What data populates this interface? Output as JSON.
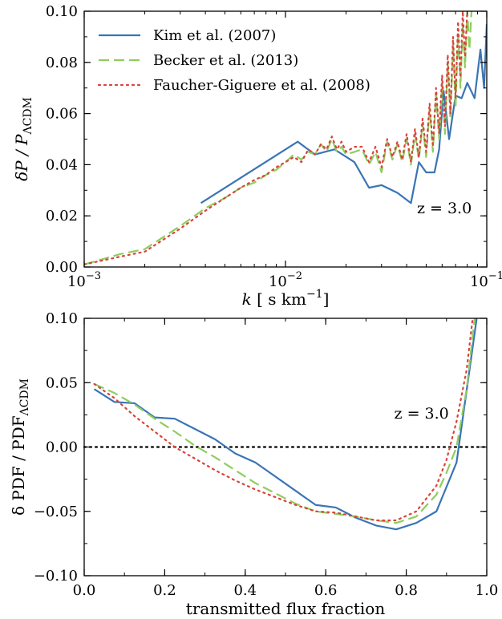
{
  "chart_data": [
    {
      "type": "line",
      "title": "",
      "xscale": "log",
      "xlim": [
        0.001,
        0.1
      ],
      "ylim": [
        0.0,
        0.1
      ],
      "xticks": [
        0.001,
        0.01,
        0.1
      ],
      "xtick_labels": [
        {
          "base": "10",
          "exp": "−3"
        },
        {
          "base": "10",
          "exp": "−2"
        },
        {
          "base": "10",
          "exp": "−1"
        }
      ],
      "yticks": [
        0.0,
        0.02,
        0.04,
        0.06,
        0.08,
        0.1
      ],
      "ytick_labels": [
        "0.00",
        "0.02",
        "0.04",
        "0.06",
        "0.08",
        "0.10"
      ],
      "xlabel": {
        "pre": "k",
        "mid": " [ s km",
        "exp": "−1",
        "post": "]"
      },
      "ylabel": {
        "main": "δP / P",
        "sub": "ΛCDM"
      },
      "legend_placement": "top-left",
      "annotation": {
        "text": "z = 3.0",
        "x": 0.045,
        "y": 0.021
      },
      "series": [
        {
          "name": "Kim et al. (2007)",
          "color": "#3a74b4",
          "style": "solid",
          "points": [
            [
              0.0038,
              0.025
            ],
            [
              0.0115,
              0.049
            ],
            [
              0.014,
              0.044
            ],
            [
              0.0175,
              0.046
            ],
            [
              0.022,
              0.041
            ],
            [
              0.026,
              0.031
            ],
            [
              0.03,
              0.032
            ],
            [
              0.036,
              0.029
            ],
            [
              0.042,
              0.025
            ],
            [
              0.046,
              0.041
            ],
            [
              0.05,
              0.037
            ],
            [
              0.055,
              0.037
            ],
            [
              0.058,
              0.046
            ],
            [
              0.061,
              0.069
            ],
            [
              0.065,
              0.05
            ],
            [
              0.07,
              0.067
            ],
            [
              0.075,
              0.066
            ],
            [
              0.08,
              0.072
            ],
            [
              0.087,
              0.066
            ],
            [
              0.093,
              0.085
            ],
            [
              0.097,
              0.07
            ],
            [
              0.1,
              0.095
            ]
          ]
        },
        {
          "name": "Becker et al. (2013)",
          "color": "#8fcd5e",
          "style": "dashed",
          "points": [
            [
              0.001,
              0.001
            ],
            [
              0.0015,
              0.005
            ],
            [
              0.002,
              0.007
            ],
            [
              0.003,
              0.016
            ],
            [
              0.004,
              0.023
            ],
            [
              0.005,
              0.027
            ],
            [
              0.006,
              0.031
            ],
            [
              0.007,
              0.033
            ],
            [
              0.008,
              0.036
            ],
            [
              0.009,
              0.038
            ],
            [
              0.01,
              0.041
            ],
            [
              0.011,
              0.044
            ],
            [
              0.012,
              0.042
            ],
            [
              0.013,
              0.045
            ],
            [
              0.014,
              0.044
            ],
            [
              0.015,
              0.048
            ],
            [
              0.016,
              0.045
            ],
            [
              0.017,
              0.05
            ],
            [
              0.018,
              0.045
            ],
            [
              0.019,
              0.047
            ],
            [
              0.02,
              0.044
            ],
            [
              0.022,
              0.045
            ],
            [
              0.024,
              0.046
            ],
            [
              0.026,
              0.04
            ],
            [
              0.028,
              0.045
            ],
            [
              0.03,
              0.037
            ],
            [
              0.032,
              0.049
            ],
            [
              0.034,
              0.042
            ],
            [
              0.036,
              0.048
            ],
            [
              0.038,
              0.041
            ],
            [
              0.04,
              0.05
            ],
            [
              0.042,
              0.04
            ],
            [
              0.044,
              0.052
            ],
            [
              0.046,
              0.042
            ],
            [
              0.048,
              0.056
            ],
            [
              0.05,
              0.043
            ],
            [
              0.052,
              0.062
            ],
            [
              0.054,
              0.045
            ],
            [
              0.056,
              0.068
            ],
            [
              0.058,
              0.05
            ],
            [
              0.06,
              0.072
            ],
            [
              0.062,
              0.052
            ],
            [
              0.064,
              0.08
            ],
            [
              0.066,
              0.058
            ],
            [
              0.068,
              0.087
            ],
            [
              0.07,
              0.062
            ],
            [
              0.072,
              0.092
            ],
            [
              0.074,
              0.07
            ],
            [
              0.076,
              0.095
            ],
            [
              0.078,
              0.078
            ],
            [
              0.08,
              0.1
            ],
            [
              0.082,
              0.085
            ],
            [
              0.084,
              0.1
            ]
          ]
        },
        {
          "name": "Faucher-Giguere et al. (2008)",
          "color": "#d8443c",
          "style": "dotted",
          "points": [
            [
              0.001,
              0.001
            ],
            [
              0.0015,
              0.004
            ],
            [
              0.002,
              0.006
            ],
            [
              0.003,
              0.015
            ],
            [
              0.004,
              0.022
            ],
            [
              0.005,
              0.027
            ],
            [
              0.006,
              0.031
            ],
            [
              0.007,
              0.034
            ],
            [
              0.008,
              0.036
            ],
            [
              0.009,
              0.039
            ],
            [
              0.01,
              0.041
            ],
            [
              0.011,
              0.043
            ],
            [
              0.012,
              0.041
            ],
            [
              0.013,
              0.046
            ],
            [
              0.014,
              0.044
            ],
            [
              0.015,
              0.048
            ],
            [
              0.016,
              0.046
            ],
            [
              0.017,
              0.051
            ],
            [
              0.018,
              0.046
            ],
            [
              0.019,
              0.049
            ],
            [
              0.02,
              0.045
            ],
            [
              0.022,
              0.047
            ],
            [
              0.024,
              0.047
            ],
            [
              0.026,
              0.041
            ],
            [
              0.028,
              0.047
            ],
            [
              0.03,
              0.039
            ],
            [
              0.032,
              0.05
            ],
            [
              0.034,
              0.043
            ],
            [
              0.036,
              0.049
            ],
            [
              0.038,
              0.042
            ],
            [
              0.04,
              0.052
            ],
            [
              0.042,
              0.041
            ],
            [
              0.044,
              0.054
            ],
            [
              0.046,
              0.043
            ],
            [
              0.048,
              0.058
            ],
            [
              0.05,
              0.045
            ],
            [
              0.052,
              0.064
            ],
            [
              0.054,
              0.047
            ],
            [
              0.056,
              0.07
            ],
            [
              0.058,
              0.052
            ],
            [
              0.06,
              0.075
            ],
            [
              0.062,
              0.055
            ],
            [
              0.064,
              0.083
            ],
            [
              0.066,
              0.06
            ],
            [
              0.068,
              0.09
            ],
            [
              0.07,
              0.066
            ],
            [
              0.072,
              0.096
            ],
            [
              0.074,
              0.074
            ],
            [
              0.076,
              0.1
            ],
            [
              0.078,
              0.082
            ],
            [
              0.08,
              0.1
            ]
          ]
        }
      ]
    },
    {
      "type": "line",
      "title": "",
      "xscale": "linear",
      "xlim": [
        0.0,
        1.0
      ],
      "ylim": [
        -0.1,
        0.1
      ],
      "xticks": [
        0.0,
        0.2,
        0.4,
        0.6,
        0.8,
        1.0
      ],
      "xtick_labels": [
        "0.0",
        "0.2",
        "0.4",
        "0.6",
        "0.8",
        "1.0"
      ],
      "yticks": [
        -0.1,
        -0.05,
        0.0,
        0.05,
        0.1
      ],
      "ytick_labels": [
        "−0.10",
        "−0.05",
        "0.00",
        "0.05",
        "0.10"
      ],
      "xlabel": "transmitted flux fraction",
      "ylabel": {
        "main": "δ PDF / PDF",
        "sub": "ΛCDM"
      },
      "annotation": {
        "text": "z = 3.0",
        "x": 0.77,
        "y": 0.022
      },
      "reference_line": {
        "y": 0.0,
        "color": "#000000",
        "style": "dotted"
      },
      "series": [
        {
          "name": "Kim et al. (2007)",
          "color": "#3a74b4",
          "style": "solid",
          "points": [
            [
              0.025,
              0.045
            ],
            [
              0.075,
              0.035
            ],
            [
              0.125,
              0.034
            ],
            [
              0.175,
              0.023
            ],
            [
              0.225,
              0.022
            ],
            [
              0.275,
              0.014
            ],
            [
              0.325,
              0.006
            ],
            [
              0.375,
              -0.005
            ],
            [
              0.425,
              -0.012
            ],
            [
              0.475,
              -0.023
            ],
            [
              0.525,
              -0.034
            ],
            [
              0.575,
              -0.045
            ],
            [
              0.625,
              -0.047
            ],
            [
              0.675,
              -0.055
            ],
            [
              0.725,
              -0.061
            ],
            [
              0.775,
              -0.064
            ],
            [
              0.825,
              -0.059
            ],
            [
              0.875,
              -0.05
            ],
            [
              0.925,
              -0.012
            ],
            [
              0.975,
              0.1
            ]
          ]
        },
        {
          "name": "Becker et al. (2013)",
          "color": "#8fcd5e",
          "style": "dashed",
          "points": [
            [
              0.025,
              0.049
            ],
            [
              0.075,
              0.042
            ],
            [
              0.125,
              0.033
            ],
            [
              0.175,
              0.022
            ],
            [
              0.225,
              0.012
            ],
            [
              0.275,
              0.001
            ],
            [
              0.325,
              -0.008
            ],
            [
              0.375,
              -0.018
            ],
            [
              0.425,
              -0.028
            ],
            [
              0.475,
              -0.036
            ],
            [
              0.525,
              -0.044
            ],
            [
              0.575,
              -0.05
            ],
            [
              0.625,
              -0.052
            ],
            [
              0.675,
              -0.054
            ],
            [
              0.725,
              -0.057
            ],
            [
              0.775,
              -0.059
            ],
            [
              0.825,
              -0.054
            ],
            [
              0.875,
              -0.037
            ],
            [
              0.9,
              -0.02
            ],
            [
              0.925,
              0.0
            ],
            [
              0.95,
              0.045
            ],
            [
              0.97,
              0.1
            ]
          ]
        },
        {
          "name": "Faucher-Giguere et al. (2008)",
          "color": "#d8443c",
          "style": "dotted",
          "points": [
            [
              0.025,
              0.049
            ],
            [
              0.075,
              0.038
            ],
            [
              0.125,
              0.024
            ],
            [
              0.175,
              0.012
            ],
            [
              0.225,
              0.0
            ],
            [
              0.275,
              -0.009
            ],
            [
              0.325,
              -0.018
            ],
            [
              0.375,
              -0.026
            ],
            [
              0.425,
              -0.033
            ],
            [
              0.475,
              -0.039
            ],
            [
              0.525,
              -0.045
            ],
            [
              0.575,
              -0.05
            ],
            [
              0.625,
              -0.051
            ],
            [
              0.675,
              -0.054
            ],
            [
              0.725,
              -0.057
            ],
            [
              0.775,
              -0.057
            ],
            [
              0.825,
              -0.05
            ],
            [
              0.875,
              -0.03
            ],
            [
              0.9,
              -0.01
            ],
            [
              0.925,
              0.02
            ],
            [
              0.95,
              0.06
            ],
            [
              0.965,
              0.1
            ]
          ]
        }
      ]
    }
  ]
}
